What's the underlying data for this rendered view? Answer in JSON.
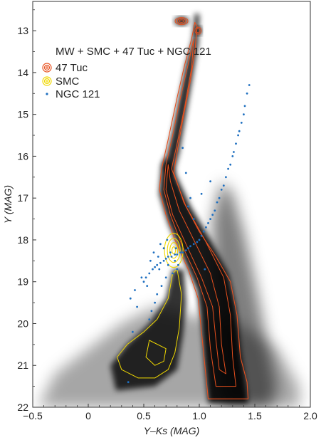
{
  "chart_data": {
    "type": "scatter",
    "title": "",
    "xlabel": "Y–Ks (MAG)",
    "ylabel": "Y (MAG)",
    "xlim": [
      -0.5,
      2.0
    ],
    "ylim": [
      22,
      12.3
    ],
    "y_inverted": true,
    "grid": false,
    "xticks": [
      -0.5,
      0,
      0.5,
      1.0,
      1.5,
      2.0
    ],
    "xtick_labels": [
      "−0.5",
      "0",
      "0.5",
      "1.0",
      "1.5",
      "2.0"
    ],
    "yticks": [
      13,
      14,
      15,
      16,
      17,
      18,
      19,
      20,
      21,
      22
    ],
    "ytick_labels": [
      "13",
      "14",
      "15",
      "16",
      "17",
      "18",
      "19",
      "20",
      "21",
      "22"
    ],
    "legend": {
      "title": "MW + SMC + 47 Tuc + NGC 121",
      "placement": "top-left",
      "entries": [
        {
          "label": "47 Tuc",
          "marker": "contour",
          "color": "#e8501e"
        },
        {
          "label": "SMC",
          "marker": "contour",
          "color": "#f0d800"
        },
        {
          "label": "NGC 121",
          "marker": "point",
          "color": "#1e6fc0"
        }
      ]
    },
    "series": [
      {
        "name": "MW + SMC + 47 Tuc + NGC 121",
        "kind": "density",
        "color": "#000000",
        "regions": [
          {
            "component": "47 Tuc red giant branch",
            "x": [
              0.78,
              0.97
            ],
            "y": [
              12.4,
              16.0
            ]
          },
          {
            "component": "47 Tuc subgiant branch",
            "x": [
              0.6,
              0.85
            ],
            "y": [
              15.9,
              17.5
            ]
          },
          {
            "component": "47 Tuc main sequence",
            "x": [
              0.7,
              1.45
            ],
            "y": [
              17.5,
              21.9
            ]
          },
          {
            "component": "SMC red clump",
            "x": [
              0.7,
              0.85
            ],
            "y": [
              17.9,
              18.7
            ]
          },
          {
            "component": "SMC main sequence",
            "x": [
              0.25,
              0.85
            ],
            "y": [
              18.7,
              21.5
            ]
          },
          {
            "component": "MW dwarf plume",
            "x": [
              1.1,
              1.6
            ],
            "y": [
              16.5,
              21.8
            ]
          },
          {
            "component": "faint field",
            "x": [
              -0.45,
              1.9
            ],
            "y": [
              19.5,
              22.0
            ]
          }
        ]
      },
      {
        "name": "47 Tuc",
        "kind": "contours",
        "color": "#e8501e",
        "features": [
          {
            "component": "red clump",
            "x": 0.84,
            "y": 12.77
          },
          {
            "component": "AGB clump",
            "x": 0.99,
            "y": 13.0
          },
          {
            "component": "red giant branch ridge",
            "x": [
              [
                0.74,
                16.1
              ],
              [
                0.78,
                15.2
              ],
              [
                0.84,
                14.2
              ],
              [
                0.9,
                13.6
              ],
              [
                0.95,
                13.1
              ]
            ]
          },
          {
            "component": "main sequence ridge",
            "x": [
              [
                0.72,
                16.1
              ],
              [
                0.7,
                16.6
              ],
              [
                0.8,
                17.5
              ],
              [
                0.95,
                18.3
              ],
              [
                1.15,
                19.2
              ],
              [
                1.22,
                20.0
              ],
              [
                1.25,
                21.0
              ],
              [
                1.3,
                21.8
              ]
            ]
          }
        ]
      },
      {
        "name": "SMC",
        "kind": "contours",
        "color": "#f0d800",
        "features": [
          {
            "component": "red clump",
            "x": 0.77,
            "y": 18.25
          },
          {
            "component": "main sequence",
            "x": [
              [
                0.8,
                18.7
              ],
              [
                0.75,
                19.5
              ],
              [
                0.65,
                20.1
              ],
              [
                0.45,
                20.6
              ],
              [
                0.3,
                21.0
              ],
              [
                0.45,
                21.3
              ],
              [
                0.7,
                21.0
              ]
            ]
          }
        ]
      },
      {
        "name": "NGC 121",
        "kind": "points",
        "color": "#1e6fc0",
        "x": [
          1.45,
          1.43,
          1.41,
          1.4,
          1.38,
          1.36,
          1.35,
          1.33,
          1.31,
          1.3,
          1.28,
          1.26,
          1.24,
          1.22,
          1.2,
          1.18,
          1.16,
          1.14,
          1.12,
          1.1,
          1.08,
          1.06,
          1.04,
          1.02,
          1.0,
          0.98,
          0.95,
          0.92,
          0.9,
          0.88,
          0.85,
          0.83,
          0.8,
          0.78,
          0.75,
          0.72,
          0.7,
          0.68,
          0.65,
          0.62,
          0.6,
          0.58,
          0.55,
          0.52,
          0.5,
          0.78,
          0.72,
          0.8,
          0.76,
          0.7,
          0.66,
          0.62,
          0.6,
          0.57,
          0.55,
          0.85,
          0.88,
          0.92,
          0.95,
          0.68,
          0.74,
          0.79,
          0.81,
          0.64,
          1.02,
          0.65,
          0.48,
          0.42,
          0.38,
          1.1,
          0.9,
          0.63,
          0.71,
          0.59,
          0.56,
          0.53,
          0.44,
          0.36,
          0.4,
          1.05
        ],
        "y": [
          14.3,
          14.5,
          14.8,
          15.0,
          15.2,
          15.4,
          15.5,
          15.7,
          15.9,
          16.0,
          16.2,
          16.3,
          16.5,
          16.7,
          16.8,
          17.0,
          17.1,
          17.3,
          17.4,
          17.5,
          17.6,
          17.7,
          17.8,
          17.9,
          18.0,
          18.05,
          18.1,
          18.15,
          18.2,
          18.25,
          18.3,
          18.3,
          18.35,
          18.35,
          18.4,
          18.4,
          18.45,
          18.5,
          18.55,
          18.6,
          18.65,
          18.7,
          18.8,
          18.9,
          19.0,
          18.5,
          18.6,
          18.7,
          18.8,
          18.9,
          19.1,
          19.3,
          19.5,
          19.7,
          19.9,
          15.8,
          16.4,
          17.0,
          17.5,
          18.2,
          18.3,
          18.2,
          18.6,
          18.7,
          16.9,
          18.1,
          18.9,
          19.2,
          19.4,
          16.6,
          17.2,
          18.4,
          18.0,
          18.3,
          18.5,
          19.1,
          19.6,
          21.4,
          20.2,
          18.7
        ]
      }
    ]
  }
}
